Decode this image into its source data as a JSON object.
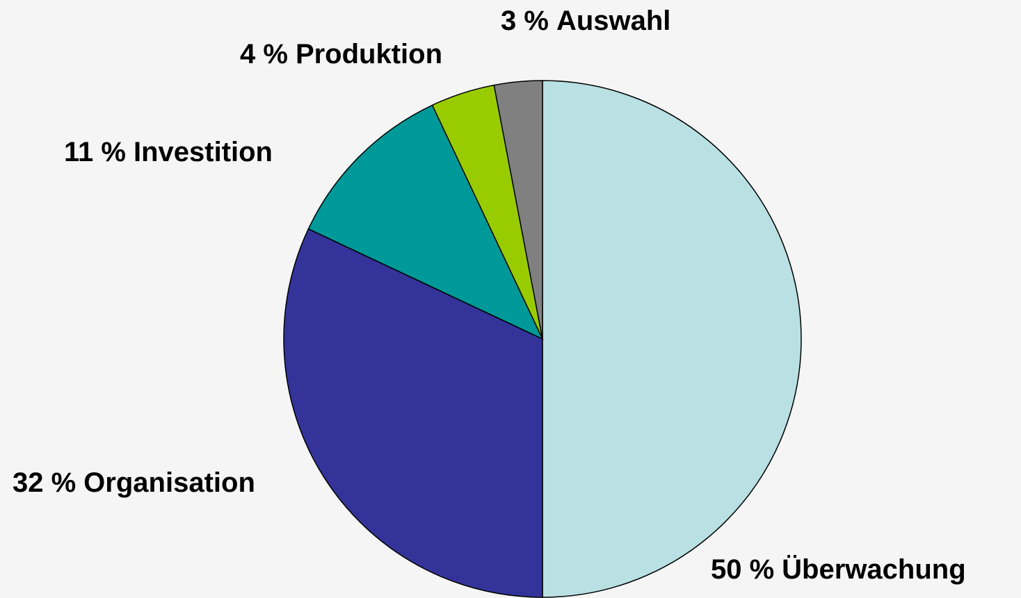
{
  "chart_data": {
    "type": "pie",
    "categories": [
      "Überwachung",
      "Organisation",
      "Investition",
      "Produktion",
      "Auswahl"
    ],
    "values": [
      50,
      32,
      11,
      4,
      3
    ],
    "value_labels": [
      "50 %",
      "32 %",
      "11 %",
      "4 %",
      "3 %"
    ],
    "colors": [
      "#b9e0e3",
      "#333399",
      "#009999",
      "#99cc00",
      "#808080"
    ]
  }
}
